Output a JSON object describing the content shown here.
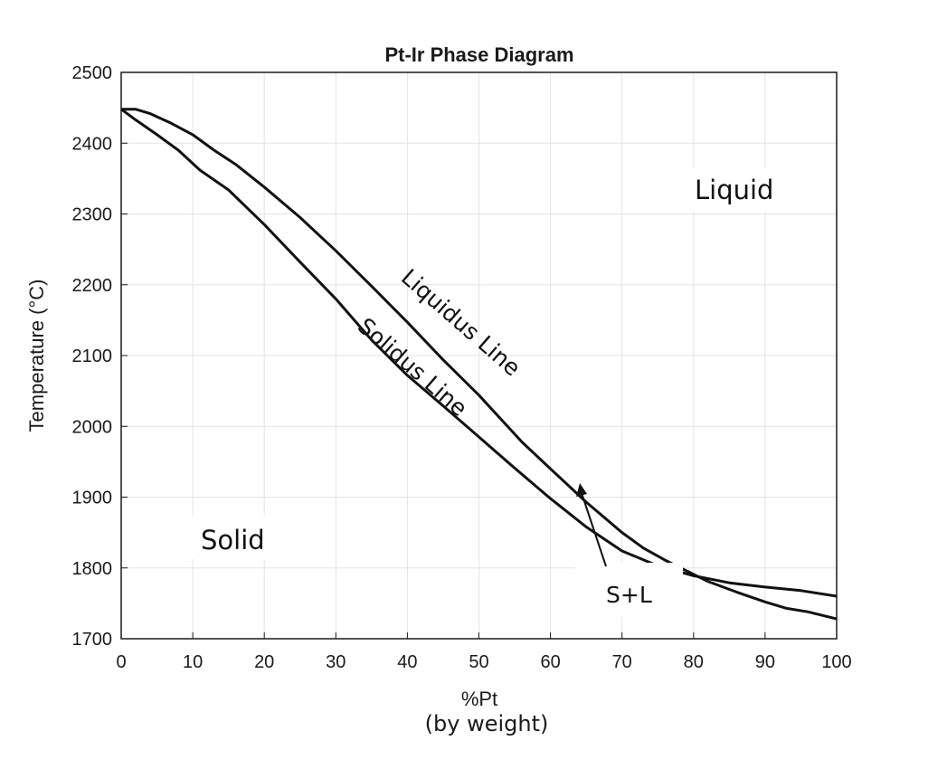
{
  "chart_data": {
    "type": "line",
    "title": "Pt-Ir Phase Diagram",
    "xlabel": "%Pt",
    "xlabel_sub": "(by weight)",
    "ylabel": "Temperature (°C)",
    "xlim": [
      0,
      100
    ],
    "ylim": [
      1700,
      2500
    ],
    "xticks": [
      0,
      10,
      20,
      30,
      40,
      50,
      60,
      70,
      80,
      90,
      100
    ],
    "yticks": [
      1700,
      1800,
      1900,
      2000,
      2100,
      2200,
      2300,
      2400,
      2500
    ],
    "grid": true,
    "series": [
      {
        "name": "Liquidus Line",
        "x": [
          0,
          2,
          4,
          7,
          10,
          13,
          16,
          20,
          25,
          30,
          35,
          40,
          45,
          50,
          53,
          56,
          60,
          65,
          70,
          73,
          76,
          80,
          82,
          86,
          90,
          93,
          96,
          100
        ],
        "y": [
          2448,
          2448,
          2442,
          2428,
          2412,
          2390,
          2370,
          2338,
          2295,
          2248,
          2198,
          2147,
          2094,
          2044,
          2011,
          1978,
          1940,
          1893,
          1850,
          1828,
          1811,
          1791,
          1781,
          1766,
          1752,
          1743,
          1738,
          1728
        ]
      },
      {
        "name": "Solidus Line",
        "x": [
          0,
          2,
          5,
          8,
          11,
          15,
          20,
          25,
          30,
          35,
          40,
          45,
          50,
          55,
          60,
          65,
          70,
          75,
          80,
          85,
          90,
          95,
          100
        ],
        "y": [
          2448,
          2433,
          2412,
          2390,
          2362,
          2334,
          2285,
          2232,
          2180,
          2122,
          2072,
          2029,
          1985,
          1941,
          1898,
          1858,
          1824,
          1803,
          1789,
          1779,
          1773,
          1768,
          1760
        ]
      }
    ],
    "annotations": {
      "liquid": "Liquid",
      "solid": "Solid",
      "two_phase": "S+L",
      "liquidus_label": "Liquidus Line",
      "solidus_label": "Solidus Line"
    }
  }
}
